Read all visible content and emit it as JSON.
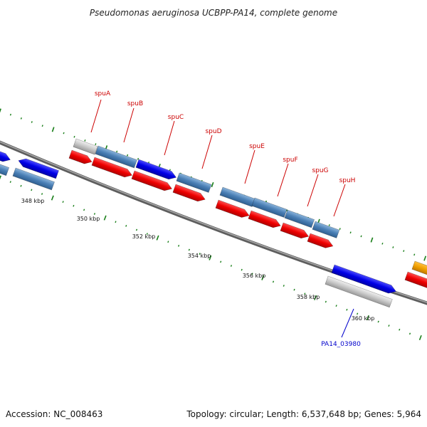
{
  "title": "Pseudomonas aeruginosa UCBPP-PA14, complete genome",
  "accession": "Accession: NC_008463",
  "summary": "Topology: circular; Length: 6,537,648 bp; Genes: 5,964",
  "colors": {
    "backbone": "#808080",
    "forward_cds": "#0000ee",
    "reverse_cds": "#ee0000",
    "operon_gene": "#4a7fb5",
    "pseudo_gene": "#c8c8c8",
    "other_feature": "#f0a000",
    "label_red": "#cc0000",
    "label_blue": "#0000cc",
    "tick_green": "#1a7f1a"
  },
  "scale_ticks": [
    {
      "label": "348 kbp"
    },
    {
      "label": "350 kbp"
    },
    {
      "label": "352 kbp"
    },
    {
      "label": "354 kbp"
    },
    {
      "label": "356 kbp"
    },
    {
      "label": "358 kbp"
    },
    {
      "label": "360 kbp"
    }
  ],
  "gene_labels": [
    {
      "name": "spuA",
      "color": "red"
    },
    {
      "name": "spuB",
      "color": "red"
    },
    {
      "name": "spuC",
      "color": "red"
    },
    {
      "name": "spuD",
      "color": "red"
    },
    {
      "name": "spuE",
      "color": "red"
    },
    {
      "name": "spuF",
      "color": "red"
    },
    {
      "name": "spuG",
      "color": "red"
    },
    {
      "name": "spuH",
      "color": "red"
    },
    {
      "name": "PA14_03980",
      "color": "blue"
    }
  ]
}
